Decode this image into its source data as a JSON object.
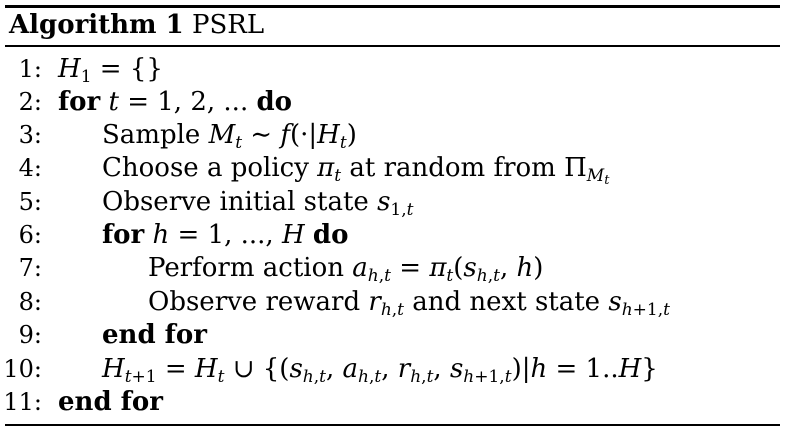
{
  "caption": {
    "label": "Algorithm 1",
    "name": "PSRL"
  },
  "lines": [
    {
      "num": "1:",
      "text": ""
    },
    {
      "num": "2:",
      "text": ""
    },
    {
      "num": "3:",
      "text": "Sample"
    },
    {
      "num": "4:",
      "text": "Choose a policy"
    },
    {
      "num": "5:",
      "text": "Observe initial state"
    },
    {
      "num": "6:",
      "text": ""
    },
    {
      "num": "7:",
      "text": "Perform action"
    },
    {
      "num": "8:",
      "text": "Observe reward"
    },
    {
      "num": "9:",
      "text": "end for"
    },
    {
      "num": "10:",
      "text": ""
    },
    {
      "num": "11:",
      "text": "end for"
    }
  ],
  "keywords": {
    "for": "for",
    "do": "do",
    "end_for": "end for"
  },
  "phrases": {
    "at_random_from": "at random from",
    "and_next_state": "and next state"
  }
}
